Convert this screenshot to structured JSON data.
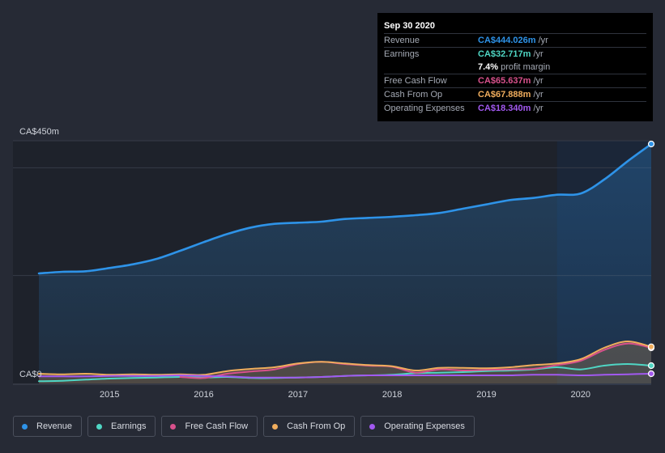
{
  "tooltip": {
    "date": "Sep 30 2020",
    "rows": [
      {
        "label": "Revenue",
        "value": "CA$444.026m",
        "unit": "/yr",
        "color": "#2e93e8"
      },
      {
        "label": "Earnings",
        "value": "CA$32.717m",
        "unit": "/yr",
        "color": "#4fd6c4"
      },
      {
        "margin_value": "7.4%",
        "margin_label": "profit margin"
      },
      {
        "label": "Free Cash Flow",
        "value": "CA$65.637m",
        "unit": "/yr",
        "color": "#d8518c"
      },
      {
        "label": "Cash From Op",
        "value": "CA$67.888m",
        "unit": "/yr",
        "color": "#f0ad5d"
      },
      {
        "label": "Operating Expenses",
        "value": "CA$18.340m",
        "unit": "/yr",
        "color": "#a259f0"
      }
    ]
  },
  "legend": [
    {
      "label": "Revenue",
      "color": "#2e93e8"
    },
    {
      "label": "Earnings",
      "color": "#4fd6c4"
    },
    {
      "label": "Free Cash Flow",
      "color": "#d8518c"
    },
    {
      "label": "Cash From Op",
      "color": "#f0ad5d"
    },
    {
      "label": "Operating Expenses",
      "color": "#a259f0"
    }
  ],
  "chart_data": {
    "type": "line",
    "y_top_label": "CA$450m",
    "y_bottom_label": "CA$0",
    "ylim": [
      0,
      450
    ],
    "xlim": [
      2014.25,
      2020.75
    ],
    "x_ticks": [
      2015,
      2016,
      2017,
      2018,
      2019,
      2020
    ],
    "x_tick_labels": [
      "2015",
      "2016",
      "2017",
      "2018",
      "2019",
      "2020"
    ],
    "grid": true,
    "legend_position": "bottom",
    "highlight_start": 2019.75,
    "series": [
      {
        "name": "Revenue",
        "color": "#2e93e8",
        "area": true,
        "x": [
          2014.25,
          2014.5,
          2014.75,
          2015.0,
          2015.25,
          2015.5,
          2015.75,
          2016.0,
          2016.25,
          2016.5,
          2016.75,
          2017.0,
          2017.25,
          2017.5,
          2017.75,
          2018.0,
          2018.25,
          2018.5,
          2018.75,
          2019.0,
          2019.25,
          2019.5,
          2019.75,
          2020.0,
          2020.25,
          2020.5,
          2020.75
        ],
        "y": [
          204,
          207,
          208,
          214,
          221,
          231,
          246,
          262,
          277,
          289,
          296,
          298,
          300,
          305,
          307,
          309,
          312,
          316,
          324,
          332,
          340,
          344,
          350,
          352,
          378,
          412,
          444
        ]
      },
      {
        "name": "Earnings",
        "color": "#4fd6c4",
        "x": [
          2014.25,
          2014.5,
          2014.75,
          2015.0,
          2015.25,
          2015.5,
          2015.75,
          2016.0,
          2016.25,
          2016.5,
          2016.75,
          2017.0,
          2017.25,
          2017.5,
          2017.75,
          2018.0,
          2018.25,
          2018.5,
          2018.75,
          2019.0,
          2019.25,
          2019.5,
          2019.75,
          2020.0,
          2020.25,
          2020.5,
          2020.75
        ],
        "y": [
          4,
          5,
          7,
          9,
          10,
          11,
          12,
          11,
          12,
          10,
          10,
          11,
          12,
          14,
          15,
          16,
          19,
          20,
          21,
          23,
          24,
          26,
          30,
          26,
          33,
          36,
          33
        ]
      },
      {
        "name": "Free Cash Flow",
        "color": "#d8518c",
        "x": [
          2015.75,
          2016.0,
          2016.25,
          2016.5,
          2016.75,
          2017.0,
          2017.25,
          2017.5,
          2017.75,
          2018.0,
          2018.25,
          2018.5,
          2018.75,
          2019.0,
          2019.25,
          2019.5,
          2019.75,
          2020.0,
          2020.25,
          2020.5,
          2020.75
        ],
        "y": [
          12,
          10,
          18,
          22,
          26,
          36,
          40,
          36,
          33,
          31,
          20,
          26,
          24,
          25,
          26,
          27,
          34,
          42,
          62,
          74,
          66
        ]
      },
      {
        "name": "Cash From Op",
        "color": "#f0ad5d",
        "area": true,
        "x": [
          2014.25,
          2014.5,
          2014.75,
          2015.0,
          2015.25,
          2015.5,
          2015.75,
          2016.0,
          2016.25,
          2016.5,
          2016.75,
          2017.0,
          2017.25,
          2017.5,
          2017.75,
          2018.0,
          2018.25,
          2018.5,
          2018.75,
          2019.0,
          2019.25,
          2019.5,
          2019.75,
          2020.0,
          2020.25,
          2020.5,
          2020.75
        ],
        "y": [
          18,
          17,
          18,
          16,
          17,
          16,
          17,
          16,
          23,
          27,
          30,
          37,
          40,
          37,
          34,
          32,
          24,
          29,
          29,
          28,
          30,
          34,
          37,
          45,
          66,
          78,
          68
        ]
      },
      {
        "name": "Operating Expenses",
        "color": "#a259f0",
        "x": [
          2014.25,
          2014.5,
          2014.75,
          2015.0,
          2015.25,
          2015.5,
          2015.75,
          2016.0,
          2016.25,
          2016.5,
          2016.75,
          2017.0,
          2017.25,
          2017.5,
          2017.75,
          2018.0,
          2018.25,
          2018.5,
          2018.75,
          2019.0,
          2019.25,
          2019.5,
          2019.75,
          2020.0,
          2020.25,
          2020.5,
          2020.75
        ],
        "y": [
          13,
          13,
          13,
          14,
          14,
          14,
          15,
          14,
          13,
          11,
          11,
          11,
          12,
          14,
          15,
          15,
          15,
          15,
          15,
          15,
          15,
          16,
          16,
          15,
          16,
          17,
          18
        ]
      }
    ]
  }
}
